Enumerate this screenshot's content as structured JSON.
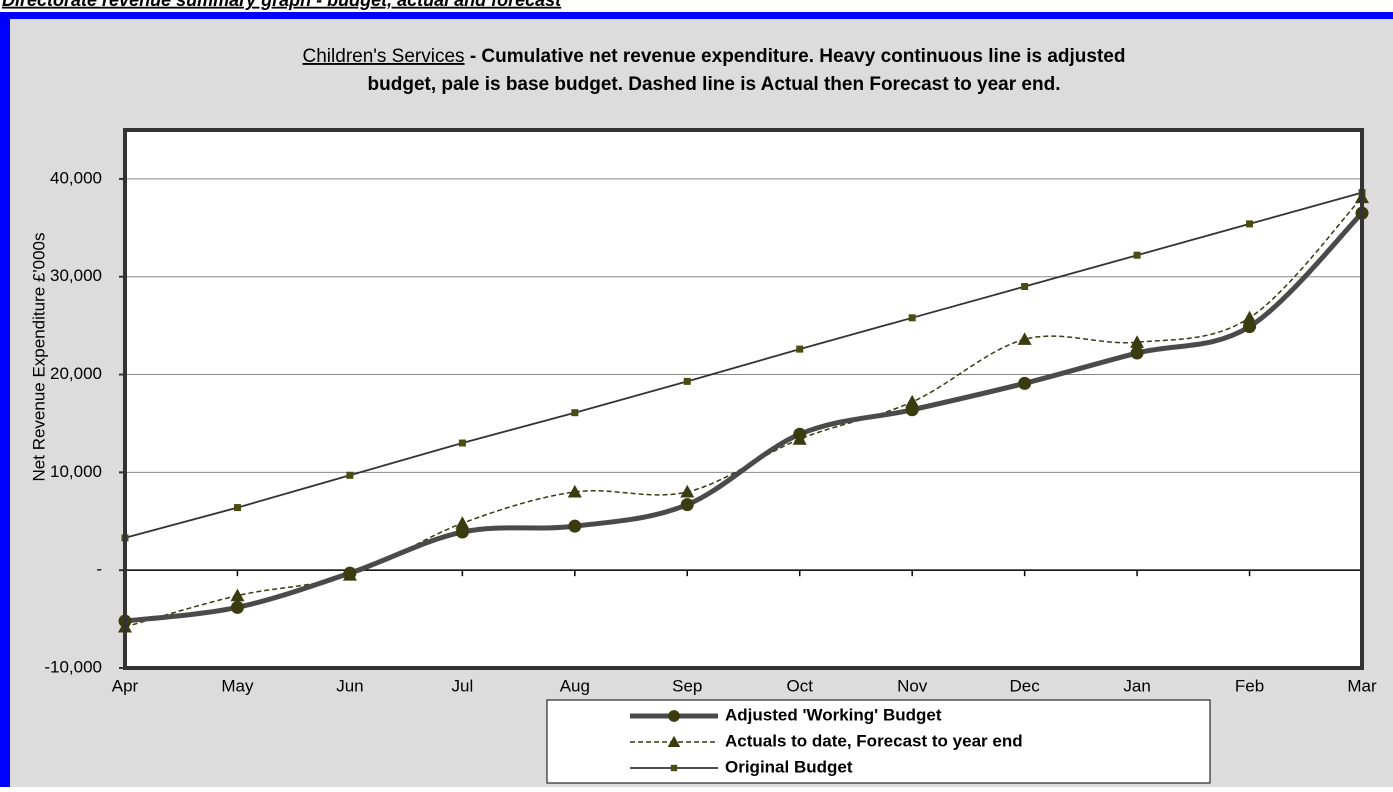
{
  "heading": "Directorate revenue summary graph - budget, actual and forecast",
  "chart_data": {
    "type": "line",
    "title_underlined": "Children's Services",
    "title": [
      " - Cumulative net revenue expenditure. Heavy continuous line is adjusted",
      "budget, pale is base budget. Dashed line is Actual then Forecast to year end."
    ],
    "y_label": "Net Revenue Expenditure £'000s",
    "categories": [
      "Apr",
      "May",
      "Jun",
      "Jul",
      "Aug",
      "Sep",
      "Oct",
      "Nov",
      "Dec",
      "Jan",
      "Feb",
      "Mar"
    ],
    "series": [
      {
        "name": "Adjusted 'Working' Budget",
        "color": "#4a4a4a",
        "marker_color": "#3b3b10",
        "marker": "circle",
        "style": "heavy",
        "smooth": true,
        "values": [
          -5200,
          -3800,
          -300,
          3900,
          4500,
          6700,
          13900,
          16400,
          19100,
          22200,
          24900,
          36500
        ]
      },
      {
        "name": "Actuals to date, Forecast to year end",
        "color": "#3b3b10",
        "marker_color": "#3b3b10",
        "marker": "triangle",
        "style": "dashed",
        "smooth": true,
        "values": [
          -5800,
          -2600,
          -500,
          4800,
          8000,
          8000,
          13400,
          17200,
          23600,
          23300,
          25800,
          38100
        ]
      },
      {
        "name": "Original Budget",
        "color": "#333333",
        "marker_color": "#4b4b12",
        "marker": "square",
        "style": "thin",
        "smooth": false,
        "values": [
          3300,
          6400,
          9700,
          13000,
          16100,
          19300,
          22600,
          25800,
          29000,
          32200,
          35400,
          38600
        ]
      }
    ],
    "ylim": [
      -10000,
      45000
    ],
    "yticks": [
      {
        "value": -10000,
        "label": "-10,000"
      },
      {
        "value": 0,
        "label": "-"
      },
      {
        "value": 10000,
        "label": "10,000"
      },
      {
        "value": 20000,
        "label": "20,000"
      },
      {
        "value": 30000,
        "label": "30,000"
      },
      {
        "value": 40000,
        "label": "40,000"
      }
    ],
    "grid": true,
    "legend": "bottom"
  }
}
